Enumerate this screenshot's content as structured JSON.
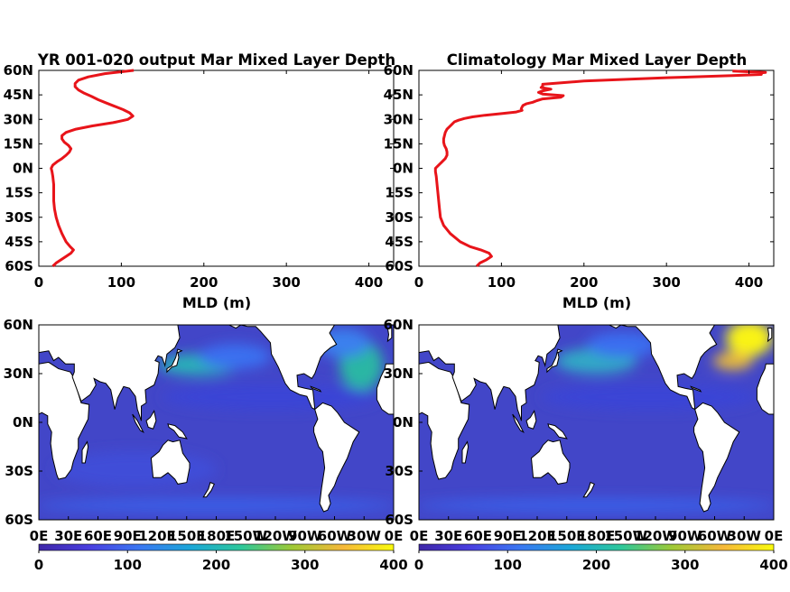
{
  "colors": {
    "profile_line": "#e8141a",
    "land": "#ffffff",
    "coast": "#000000",
    "axis": "#000000",
    "ocean_base": "#4246c8",
    "colormap": [
      "#3e26a8",
      "#4a3fe0",
      "#3a78f2",
      "#1ba7d8",
      "#2ec89a",
      "#9fc936",
      "#f6b83a",
      "#f9fb0e"
    ]
  },
  "chart_data": [
    {
      "type": "line",
      "title": "YR 001-020 output Mar Mixed Layer Depth",
      "xlabel": "MLD (m)",
      "ylabel": "",
      "xlim": [
        0,
        430
      ],
      "ylim": [
        -60,
        60
      ],
      "x_ticks": [
        "0",
        "100",
        "200",
        "300",
        "400"
      ],
      "y_ticks": [
        "60N",
        "45N",
        "30N",
        "15N",
        "0N",
        "15S",
        "30S",
        "45S",
        "60S"
      ],
      "series": [
        {
          "latitude": [
            60,
            58,
            56,
            54,
            52,
            50,
            48,
            46,
            44,
            42,
            40,
            38,
            36,
            34,
            32,
            30,
            28,
            26,
            24,
            22,
            20,
            18,
            16,
            14,
            12,
            10,
            8,
            6,
            4,
            2,
            0,
            -2,
            -5,
            -10,
            -15,
            -20,
            -25,
            -30,
            -35,
            -40,
            -45,
            -48,
            -50,
            -52,
            -54,
            -56,
            -58,
            -60
          ],
          "mld": [
            115,
            80,
            60,
            48,
            44,
            44,
            48,
            55,
            64,
            72,
            82,
            92,
            102,
            110,
            114,
            108,
            90,
            65,
            45,
            33,
            28,
            28,
            31,
            36,
            39,
            37,
            33,
            28,
            22,
            17,
            15,
            16,
            17,
            18,
            18,
            18,
            19,
            21,
            24,
            28,
            33,
            38,
            42,
            39,
            33,
            27,
            21,
            17
          ]
        }
      ]
    },
    {
      "type": "line",
      "title": "Climatology Mar Mixed Layer Depth",
      "xlabel": "MLD (m)",
      "ylabel": "",
      "xlim": [
        0,
        430
      ],
      "ylim": [
        -60,
        60
      ],
      "x_ticks": [
        "0",
        "100",
        "200",
        "300",
        "400"
      ],
      "y_ticks": [
        "60N",
        "45N",
        "30N",
        "15N",
        "0N",
        "15S",
        "30S",
        "45S",
        "60S"
      ],
      "series": [
        {
          "latitude": [
            59.6,
            58.8,
            58.3,
            57.5,
            56.8,
            55.5,
            53.5,
            51.5,
            50.5,
            49.5,
            48.5,
            47.5,
            46.5,
            45.5,
            44.5,
            43.5,
            42.5,
            41.5,
            40.5,
            39.5,
            38.5,
            37.5,
            36.5,
            35.5,
            34.5,
            33.5,
            32.5,
            31.5,
            30.5,
            29.5,
            28.5,
            27,
            25.5,
            24,
            22,
            20,
            18,
            16,
            14,
            12,
            10,
            8,
            6,
            4,
            2,
            0,
            -2,
            -5,
            -10,
            -15,
            -20,
            -25,
            -30,
            -35,
            -40,
            -45,
            -48,
            -50,
            -52,
            -54,
            -56,
            -58,
            -60
          ],
          "mld": [
            380,
            420,
            410,
            415,
            380,
            300,
            200,
            150,
            150,
            148,
            160,
            150,
            145,
            150,
            175,
            172,
            150,
            143,
            138,
            130,
            126,
            125,
            124,
            125,
            118,
            100,
            80,
            65,
            55,
            48,
            43,
            40,
            37,
            34,
            32,
            31,
            30,
            30,
            31,
            33,
            34,
            34,
            32,
            28,
            24,
            20,
            20,
            21,
            22,
            23,
            24,
            25,
            26,
            30,
            38,
            50,
            62,
            75,
            85,
            88,
            82,
            74,
            70
          ]
        }
      ]
    },
    {
      "type": "heatmap",
      "title": "",
      "xlabel": "",
      "ylabel": "",
      "xlim": [
        0,
        360
      ],
      "ylim": [
        -60,
        60
      ],
      "x_ticks": [
        "0E",
        "30E",
        "60E",
        "90E",
        "120E",
        "150E",
        "180E",
        "150W",
        "120W",
        "90W",
        "60W",
        "30W",
        "0E"
      ],
      "y_ticks": [
        "60N",
        "30N",
        "0N",
        "30S",
        "60S"
      ],
      "colorbar": {
        "min": 0,
        "max": 400,
        "ticks": [
          "0",
          "100",
          "200",
          "300",
          "400"
        ]
      }
    },
    {
      "type": "heatmap",
      "title": "",
      "xlabel": "",
      "ylabel": "",
      "xlim": [
        0,
        360
      ],
      "ylim": [
        -60,
        60
      ],
      "x_ticks": [
        "0E",
        "30E",
        "60E",
        "90E",
        "120E",
        "150E",
        "180E",
        "150W",
        "120W",
        "90W",
        "60W",
        "30W",
        "0E"
      ],
      "y_ticks": [
        "60N",
        "30N",
        "0N",
        "30S",
        "60S"
      ],
      "colorbar": {
        "min": 0,
        "max": 400,
        "ticks": [
          "0",
          "100",
          "200",
          "300",
          "400"
        ]
      }
    }
  ]
}
